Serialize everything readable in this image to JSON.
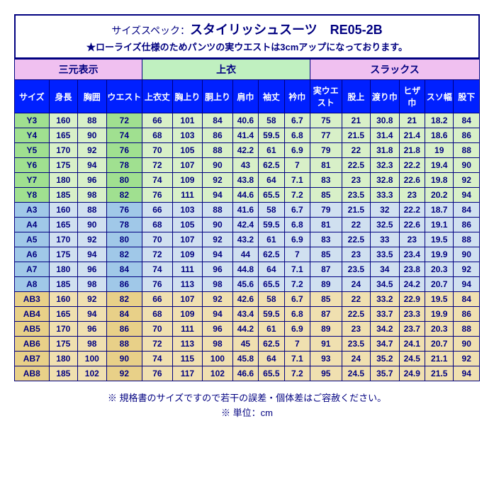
{
  "title_prefix": "サイズスペック：",
  "title_main": "スタイリッシュスーツ　RE05-2B",
  "subtitle": "★ローライズ仕様のためパンツの実ウエストは3cmアップになっております。",
  "groups": [
    "三元表示",
    "上衣",
    "スラックス"
  ],
  "headers": [
    "サイズ",
    "身長",
    "胸囲",
    "ウエスト",
    "上衣丈",
    "胸上り",
    "胴上り",
    "肩巾",
    "袖丈",
    "衿巾",
    "実ウエスト",
    "股上",
    "渡り巾",
    "ヒザ巾",
    "スソ幅",
    "股下"
  ],
  "rows": [
    {
      "c": "g",
      "d": [
        "Y3",
        "160",
        "88",
        "72",
        "66",
        "101",
        "84",
        "40.6",
        "58",
        "6.7",
        "75",
        "21",
        "30.8",
        "21",
        "18.2",
        "84"
      ]
    },
    {
      "c": "g",
      "d": [
        "Y4",
        "165",
        "90",
        "74",
        "68",
        "103",
        "86",
        "41.4",
        "59.5",
        "6.8",
        "77",
        "21.5",
        "31.4",
        "21.4",
        "18.6",
        "86"
      ]
    },
    {
      "c": "g",
      "d": [
        "Y5",
        "170",
        "92",
        "76",
        "70",
        "105",
        "88",
        "42.2",
        "61",
        "6.9",
        "79",
        "22",
        "31.8",
        "21.8",
        "19",
        "88"
      ]
    },
    {
      "c": "g",
      "d": [
        "Y6",
        "175",
        "94",
        "78",
        "72",
        "107",
        "90",
        "43",
        "62.5",
        "7",
        "81",
        "22.5",
        "32.3",
        "22.2",
        "19.4",
        "90"
      ]
    },
    {
      "c": "g",
      "d": [
        "Y7",
        "180",
        "96",
        "80",
        "74",
        "109",
        "92",
        "43.8",
        "64",
        "7.1",
        "83",
        "23",
        "32.8",
        "22.6",
        "19.8",
        "92"
      ]
    },
    {
      "c": "g",
      "d": [
        "Y8",
        "185",
        "98",
        "82",
        "76",
        "111",
        "94",
        "44.6",
        "65.5",
        "7.2",
        "85",
        "23.5",
        "33.3",
        "23",
        "20.2",
        "94"
      ]
    },
    {
      "c": "b",
      "d": [
        "A3",
        "160",
        "88",
        "76",
        "66",
        "103",
        "88",
        "41.6",
        "58",
        "6.7",
        "79",
        "21.5",
        "32",
        "22.2",
        "18.7",
        "84"
      ]
    },
    {
      "c": "b",
      "d": [
        "A4",
        "165",
        "90",
        "78",
        "68",
        "105",
        "90",
        "42.4",
        "59.5",
        "6.8",
        "81",
        "22",
        "32.5",
        "22.6",
        "19.1",
        "86"
      ]
    },
    {
      "c": "b",
      "d": [
        "A5",
        "170",
        "92",
        "80",
        "70",
        "107",
        "92",
        "43.2",
        "61",
        "6.9",
        "83",
        "22.5",
        "33",
        "23",
        "19.5",
        "88"
      ]
    },
    {
      "c": "b",
      "d": [
        "A6",
        "175",
        "94",
        "82",
        "72",
        "109",
        "94",
        "44",
        "62.5",
        "7",
        "85",
        "23",
        "33.5",
        "23.4",
        "19.9",
        "90"
      ]
    },
    {
      "c": "b",
      "d": [
        "A7",
        "180",
        "96",
        "84",
        "74",
        "111",
        "96",
        "44.8",
        "64",
        "7.1",
        "87",
        "23.5",
        "34",
        "23.8",
        "20.3",
        "92"
      ]
    },
    {
      "c": "b",
      "d": [
        "A8",
        "185",
        "98",
        "86",
        "76",
        "113",
        "98",
        "45.6",
        "65.5",
        "7.2",
        "89",
        "24",
        "34.5",
        "24.2",
        "20.7",
        "94"
      ]
    },
    {
      "c": "t",
      "d": [
        "AB3",
        "160",
        "92",
        "82",
        "66",
        "107",
        "92",
        "42.6",
        "58",
        "6.7",
        "85",
        "22",
        "33.2",
        "22.9",
        "19.5",
        "84"
      ]
    },
    {
      "c": "t",
      "d": [
        "AB4",
        "165",
        "94",
        "84",
        "68",
        "109",
        "94",
        "43.4",
        "59.5",
        "6.8",
        "87",
        "22.5",
        "33.7",
        "23.3",
        "19.9",
        "86"
      ]
    },
    {
      "c": "t",
      "d": [
        "AB5",
        "170",
        "96",
        "86",
        "70",
        "111",
        "96",
        "44.2",
        "61",
        "6.9",
        "89",
        "23",
        "34.2",
        "23.7",
        "20.3",
        "88"
      ]
    },
    {
      "c": "t",
      "d": [
        "AB6",
        "175",
        "98",
        "88",
        "72",
        "113",
        "98",
        "45",
        "62.5",
        "7",
        "91",
        "23.5",
        "34.7",
        "24.1",
        "20.7",
        "90"
      ]
    },
    {
      "c": "t",
      "d": [
        "AB7",
        "180",
        "100",
        "90",
        "74",
        "115",
        "100",
        "45.8",
        "64",
        "7.1",
        "93",
        "24",
        "35.2",
        "24.5",
        "21.1",
        "92"
      ]
    },
    {
      "c": "t",
      "d": [
        "AB8",
        "185",
        "102",
        "92",
        "76",
        "117",
        "102",
        "46.6",
        "65.5",
        "7.2",
        "95",
        "24.5",
        "35.7",
        "24.9",
        "21.5",
        "94"
      ]
    }
  ],
  "foot1": "※ 規格書のサイズですので若干の誤差・個体差はご容赦ください。",
  "foot2": "※ 単位：cm"
}
